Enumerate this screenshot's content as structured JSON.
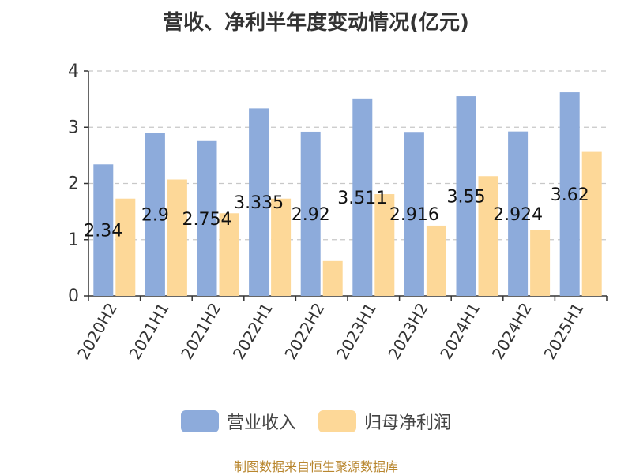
{
  "title": "营收、净利半年度变动情况(亿元)",
  "source": "制图数据来自恒生聚源数据库",
  "colors": {
    "revenue": "#8dabdb",
    "profit": "#fdd898",
    "grid": "#c8c8c8",
    "axis": "#333333"
  },
  "chart_data": {
    "type": "bar",
    "categories": [
      "2020H2",
      "2021H1",
      "2021H2",
      "2022H1",
      "2022H2",
      "2023H1",
      "2023H2",
      "2024H1",
      "2024H2",
      "2025H1"
    ],
    "series": [
      {
        "name": "营业收入",
        "values": [
          2.34,
          2.9,
          2.754,
          3.335,
          2.92,
          3.511,
          2.916,
          3.55,
          2.924,
          3.62
        ],
        "labels": [
          "2.34",
          "2.9",
          "2.754",
          "3.335",
          "2.92",
          "3.511",
          "2.916",
          "3.55",
          "2.924",
          "3.62"
        ]
      },
      {
        "name": "归母净利润",
        "values": [
          1.73,
          2.07,
          1.47,
          1.73,
          0.62,
          1.81,
          1.25,
          2.13,
          1.17,
          2.56
        ]
      }
    ],
    "ylim": [
      0,
      4
    ],
    "yticks": [
      0,
      1,
      2,
      3,
      4
    ],
    "grid": true,
    "legend": "bottom-center"
  }
}
